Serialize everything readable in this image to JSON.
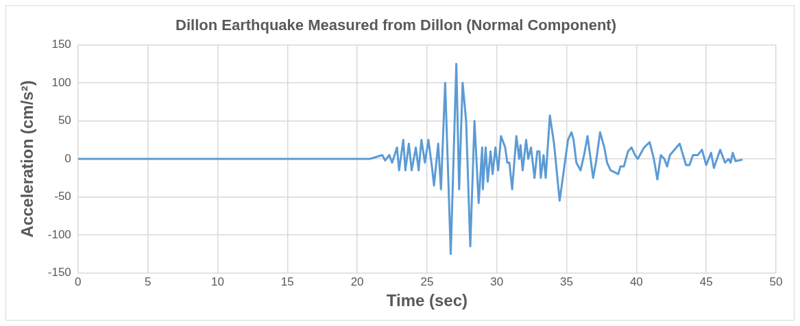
{
  "chart_data": {
    "type": "line",
    "title": "Dillon Earthquake Measured from Dillon (Normal Component)",
    "xlabel": "Time (sec)",
    "ylabel": "Acceleration (cm/s²)",
    "xlim": [
      0,
      50
    ],
    "xticks": [
      0,
      5,
      10,
      15,
      20,
      25,
      30,
      35,
      40,
      45,
      50
    ],
    "ylim": [
      -150,
      150
    ],
    "yticks": [
      -150,
      -100,
      -50,
      0,
      50,
      100,
      150
    ],
    "grid": true,
    "marker": "none",
    "series": [
      {
        "color": "#5b9bd5",
        "x": [
          0,
          20.9,
          21.8,
          22.0,
          22.3,
          22.5,
          22.85,
          23.0,
          23.3,
          23.45,
          23.7,
          23.9,
          24.2,
          24.4,
          24.6,
          24.85,
          25.1,
          25.35,
          25.5,
          25.8,
          26.0,
          26.3,
          26.7,
          27.1,
          27.3,
          27.55,
          27.8,
          28.1,
          28.4,
          28.7,
          28.95,
          29.0,
          29.2,
          29.35,
          29.55,
          29.7,
          29.9,
          30.1,
          30.3,
          30.6,
          30.75,
          30.9,
          31.1,
          31.4,
          31.6,
          31.7,
          31.85,
          32.1,
          32.25,
          32.45,
          32.7,
          32.9,
          33.05,
          33.15,
          33.35,
          33.5,
          33.8,
          34.1,
          34.5,
          35.1,
          35.35,
          35.5,
          35.7,
          36.0,
          36.25,
          36.5,
          36.9,
          37.1,
          37.4,
          37.7,
          37.9,
          38.15,
          38.7,
          38.85,
          39.1,
          39.4,
          39.65,
          39.9,
          40.1,
          40.55,
          40.95,
          41.25,
          41.5,
          41.75,
          42.0,
          42.2,
          42.4,
          43.1,
          43.55,
          43.8,
          44.05,
          44.4,
          44.7,
          45.0,
          45.35,
          45.55,
          46.0,
          46.35,
          46.6,
          46.75,
          46.9,
          47.1,
          47.6
        ],
        "values": [
          0,
          0,
          5,
          -2,
          5,
          -5,
          15,
          -15,
          25,
          -15,
          20,
          -15,
          15,
          -15,
          25,
          -5,
          25,
          -10,
          -35,
          20,
          -40,
          100,
          -125,
          125,
          -40,
          100,
          50,
          -115,
          50,
          -58,
          15,
          -40,
          15,
          -30,
          10,
          -20,
          15,
          -15,
          30,
          15,
          -5,
          -5,
          -40,
          30,
          0,
          18,
          -15,
          25,
          0,
          15,
          -25,
          10,
          10,
          -25,
          5,
          -25,
          57,
          20,
          -55,
          25,
          35,
          25,
          -5,
          -15,
          5,
          30,
          -25,
          -5,
          35,
          15,
          -5,
          -15,
          -20,
          -10,
          -10,
          10,
          15,
          5,
          0,
          15,
          22,
          0,
          -27,
          5,
          0,
          -10,
          5,
          20,
          -8,
          -8,
          5,
          5,
          12,
          -8,
          8,
          -12,
          12,
          -5,
          0,
          -5,
          8,
          -3,
          -1
        ]
      }
    ]
  }
}
